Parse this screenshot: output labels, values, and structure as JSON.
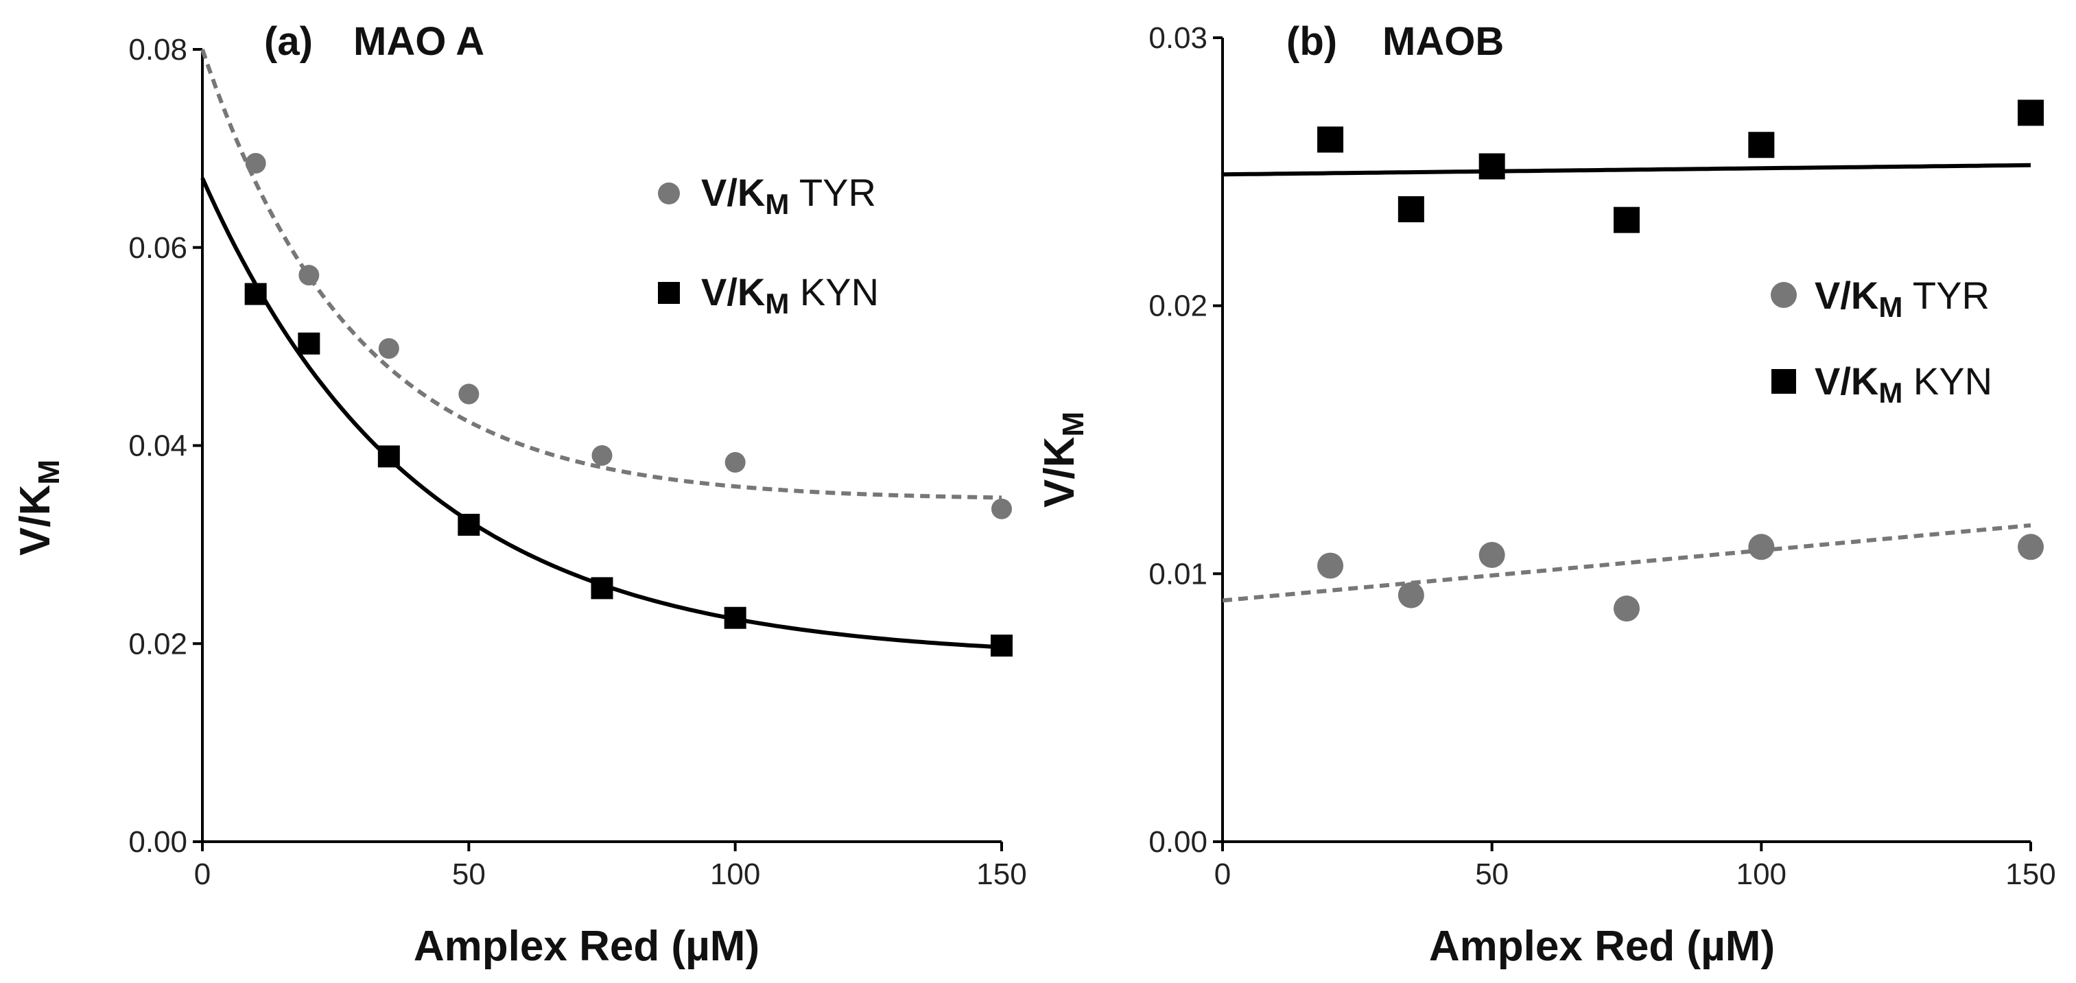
{
  "chart_data": [
    {
      "type": "scatter",
      "panel": "a",
      "title_letter": "(a)",
      "title": "MAO  A",
      "xlabel": "Amplex Red  (µM)",
      "ylabel_main": "V/K",
      "ylabel_sub": "M",
      "xlim": [
        0,
        150
      ],
      "ylim": [
        0,
        0.08
      ],
      "xticks": [
        0,
        50,
        100,
        150
      ],
      "yticks": [
        0,
        0.02,
        0.04,
        0.06,
        0.08
      ],
      "xtick_labels": [
        "0",
        "50",
        "100",
        "150"
      ],
      "ytick_labels": [
        "0.00",
        "0.02",
        "0.04",
        "0.06",
        "0.08"
      ],
      "series": [
        {
          "name": "TYR",
          "legend_main": "V/K",
          "legend_sub": "M",
          "legend_rest": " TYR",
          "marker": "circle",
          "color": "#777777",
          "x": [
            10,
            20,
            35,
            50,
            75,
            100,
            150
          ],
          "y": [
            0.0685,
            0.0572,
            0.0498,
            0.0452,
            0.039,
            0.0383,
            0.0336
          ],
          "fit": {
            "kind": "exp",
            "y0": 0.08,
            "plateau": 0.0345,
            "k": 0.035,
            "style": "dashed"
          }
        },
        {
          "name": "KYN",
          "legend_main": "V/K",
          "legend_sub": "M",
          "legend_rest": " KYN",
          "marker": "square",
          "color": "#000000",
          "x": [
            10,
            20,
            35,
            50,
            75,
            100,
            150
          ],
          "y": [
            0.0553,
            0.0503,
            0.0389,
            0.032,
            0.0256,
            0.0226,
            0.0198
          ],
          "fit": {
            "kind": "exp",
            "y0": 0.067,
            "plateau": 0.0185,
            "k": 0.025,
            "style": "solid"
          }
        }
      ]
    },
    {
      "type": "scatter",
      "panel": "b",
      "title_letter": "(b)",
      "title": "MAOB",
      "xlabel": "Amplex Red  (µM)",
      "ylabel_main": "V/K",
      "ylabel_sub": "M",
      "xlim": [
        0,
        150
      ],
      "ylim": [
        0,
        0.03
      ],
      "xticks": [
        0,
        50,
        100,
        150
      ],
      "yticks": [
        0,
        0.01,
        0.02,
        0.03
      ],
      "xtick_labels": [
        "0",
        "50",
        "100",
        "150"
      ],
      "ytick_labels": [
        "0.00",
        "0.01",
        "0.02",
        "0.03"
      ],
      "series": [
        {
          "name": "TYR",
          "legend_main": "V/K",
          "legend_sub": "M",
          "legend_rest": " TYR",
          "marker": "circle",
          "color": "#777777",
          "x": [
            20,
            35,
            50,
            75,
            100,
            150
          ],
          "y": [
            0.0103,
            0.0092,
            0.0107,
            0.0087,
            0.011,
            0.011
          ],
          "fit": {
            "kind": "linear",
            "intercept": 0.009,
            "slope": 1.87e-05,
            "style": "dashed"
          }
        },
        {
          "name": "KYN",
          "legend_main": "V/K",
          "legend_sub": "M",
          "legend_rest": " KYN",
          "marker": "square",
          "color": "#000000",
          "x": [
            20,
            35,
            50,
            75,
            100,
            150
          ],
          "y": [
            0.0262,
            0.0236,
            0.0252,
            0.0232,
            0.026,
            0.0272
          ],
          "fit": {
            "kind": "linear",
            "intercept": 0.0249,
            "slope": 2.3e-06,
            "style": "solid"
          }
        }
      ]
    }
  ]
}
